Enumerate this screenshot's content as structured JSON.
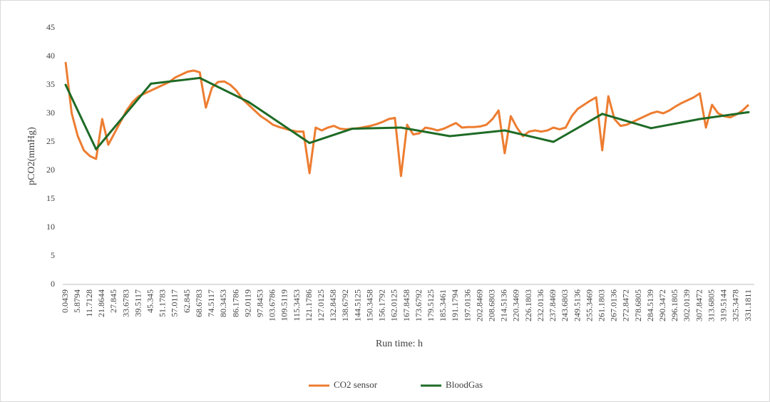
{
  "chart_data": {
    "type": "line",
    "y_label": "pCO2(mmHg)",
    "x_label": "Run time: h",
    "categories": [
      "0.0439",
      null,
      "5.8794",
      null,
      "11.7128",
      null,
      "21.8644",
      null,
      "27.845",
      null,
      "33.6783",
      null,
      "39.5117",
      null,
      "45.345",
      null,
      "51.1783",
      null,
      "57.0117",
      null,
      "62.845",
      null,
      "68.6783",
      null,
      "74.5117",
      null,
      "80.3453",
      null,
      "86.1786",
      null,
      "92.0119",
      null,
      "97.8453",
      null,
      "103.6786",
      null,
      "109.5119",
      null,
      "115.3453",
      null,
      "121.1786",
      null,
      "127.0125",
      null,
      "132.8458",
      null,
      "138.6792",
      null,
      "144.5125",
      null,
      "150.3458",
      null,
      "156.1792",
      null,
      "162.0125",
      null,
      "167.8458",
      null,
      "173.6792",
      null,
      "179.5125",
      null,
      "185.3461",
      null,
      "191.1794",
      null,
      "197.0136",
      null,
      "202.8469",
      null,
      "208.6803",
      null,
      "214.5136",
      null,
      "220.3469",
      null,
      "226.1803",
      null,
      "232.0136",
      null,
      "237.8469",
      null,
      "243.6803",
      null,
      "249.5136",
      null,
      "255.3469",
      null,
      "261.1803",
      null,
      "267.0136",
      null,
      "272.8472",
      null,
      "278.6805",
      null,
      "284.5139",
      null,
      "290.3472",
      null,
      "296.1805",
      null,
      "302.0139",
      null,
      "307.8472",
      null,
      "313.6805",
      null,
      "319.5144",
      null,
      "325.3478",
      null,
      "331.1811"
    ],
    "series": [
      {
        "name": "CO2 sensor",
        "color": "#ed7d31",
        "values": [
          39,
          30,
          26,
          23.5,
          22.5,
          22,
          29,
          24.5,
          26.5,
          28.5,
          30.5,
          32,
          33,
          33.5,
          34,
          34.5,
          35,
          35.5,
          36.3,
          36.8,
          37.3,
          37.5,
          37.2,
          31,
          34.5,
          35.5,
          35.6,
          35,
          34,
          32.5,
          31.5,
          30.5,
          29.5,
          28.8,
          28,
          27.6,
          27.3,
          27,
          26.8,
          26.8,
          19.5,
          27.5,
          27,
          27.5,
          27.8,
          27.3,
          27.2,
          27.3,
          27.4,
          27.6,
          27.8,
          28.1,
          28.5,
          29,
          29.2,
          19,
          28,
          26.3,
          26.5,
          27.5,
          27.3,
          27,
          27.3,
          27.8,
          28.3,
          27.5,
          27.6,
          27.6,
          27.7,
          28,
          29,
          30.5,
          23,
          29.5,
          27.5,
          26,
          26.8,
          27,
          26.8,
          27,
          27.5,
          27.2,
          27.5,
          29.5,
          30.8,
          31.5,
          32.2,
          32.8,
          23.5,
          33,
          29,
          27.8,
          28,
          28.5,
          29,
          29.5,
          30,
          30.3,
          30,
          30.5,
          31.2,
          31.8,
          32.3,
          32.8,
          33.5,
          27.5,
          31.5,
          30,
          29.5,
          29.3,
          29.8,
          30.5,
          31.5
        ]
      },
      {
        "name": "BloodGas",
        "color": "#1e6b26",
        "values": [
          35,
          null,
          null,
          null,
          null,
          23.7,
          null,
          null,
          null,
          null,
          null,
          null,
          null,
          null,
          35.2,
          null,
          null,
          null,
          null,
          null,
          null,
          null,
          36.2,
          null,
          null,
          null,
          null,
          null,
          null,
          null,
          32,
          null,
          null,
          null,
          null,
          null,
          null,
          null,
          null,
          null,
          24.8,
          null,
          null,
          null,
          null,
          null,
          null,
          27.3,
          null,
          null,
          null,
          null,
          null,
          null,
          null,
          27.5,
          null,
          null,
          null,
          null,
          null,
          null,
          null,
          26,
          null,
          null,
          null,
          null,
          null,
          null,
          null,
          null,
          27,
          null,
          null,
          null,
          null,
          null,
          null,
          null,
          25,
          null,
          null,
          null,
          null,
          null,
          null,
          null,
          29.9,
          null,
          null,
          null,
          null,
          null,
          null,
          null,
          27.4,
          null,
          null,
          null,
          null,
          null,
          null,
          null,
          29,
          null,
          null,
          null,
          null,
          null,
          null,
          null,
          30.2
        ]
      }
    ],
    "ylim": [
      0,
      45
    ],
    "yticks": [
      0,
      5,
      10,
      15,
      20,
      25,
      30,
      35,
      40,
      45
    ],
    "grid": false,
    "legend": "bottom"
  }
}
